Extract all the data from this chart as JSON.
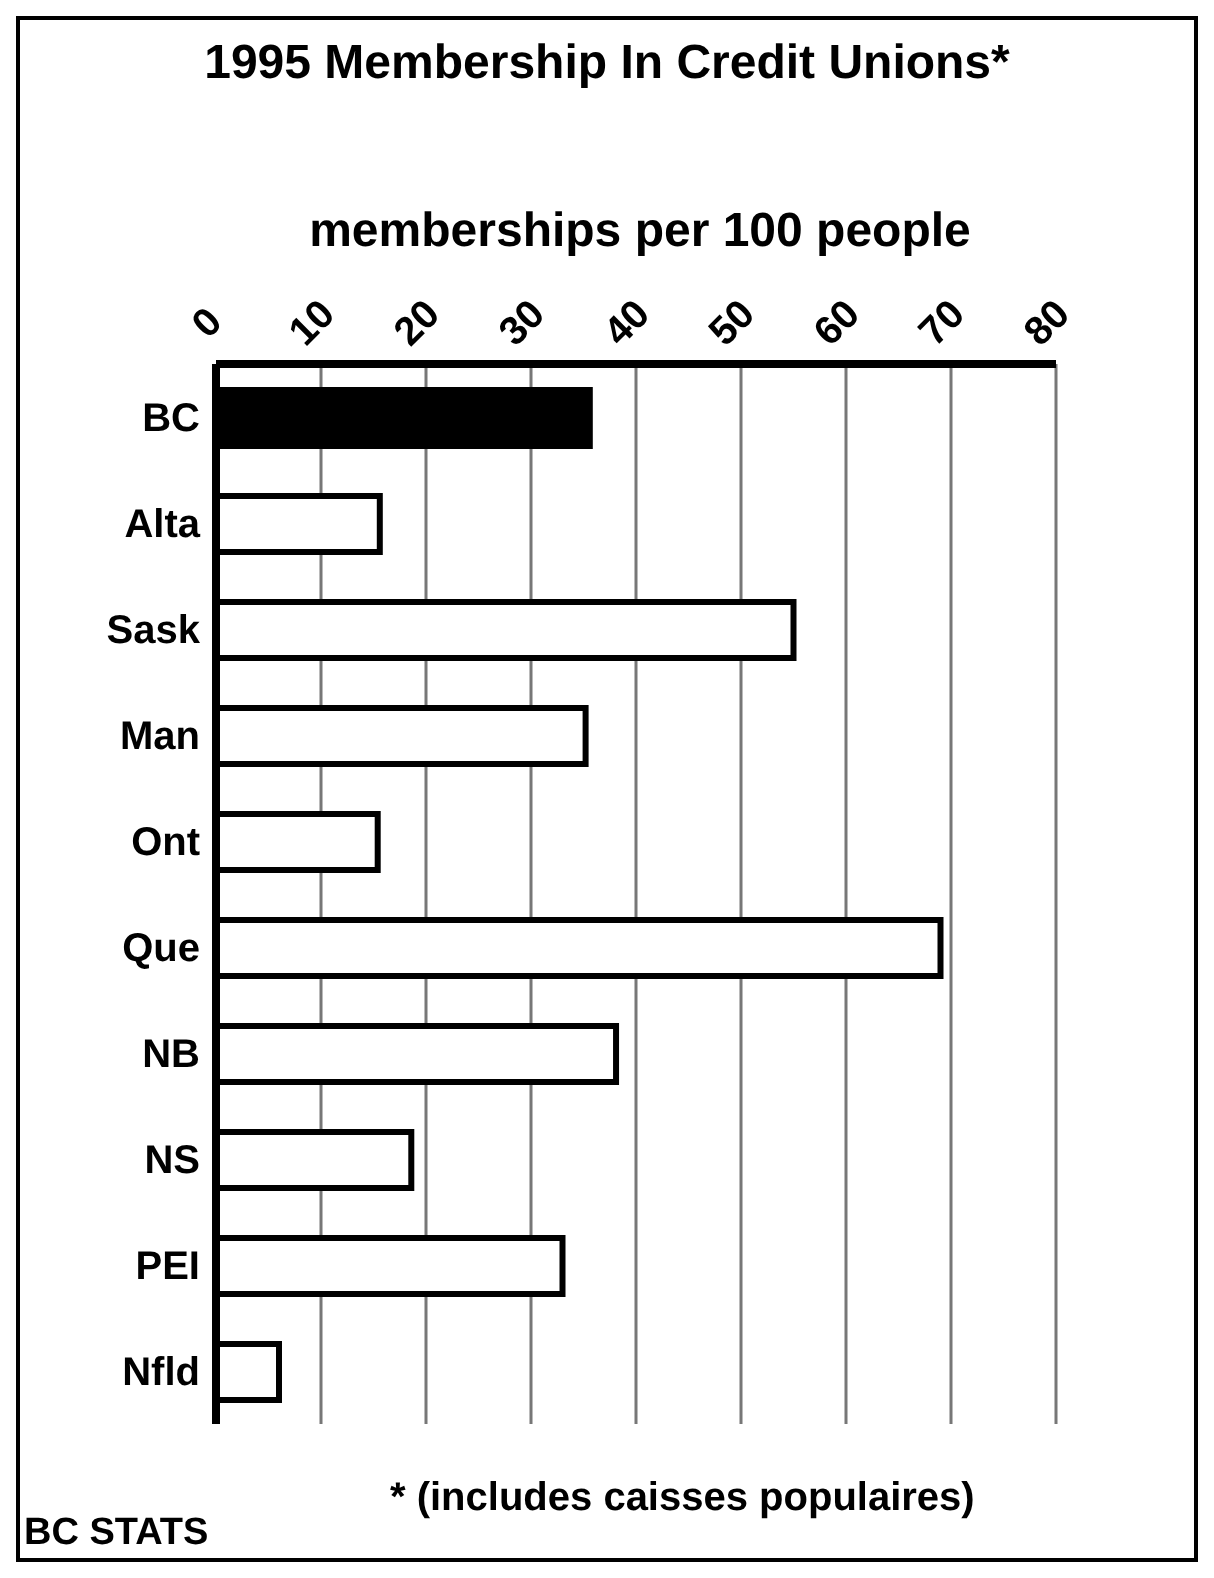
{
  "chart_data": {
    "type": "bar",
    "orientation": "horizontal",
    "title": "1995 Membership In Credit Unions*",
    "xlabel": "memberships per 100 people",
    "categories": [
      "BC",
      "Alta",
      "Sask",
      "Man",
      "Ont",
      "Que",
      "NB",
      "NS",
      "PEI",
      "Nfld"
    ],
    "values": [
      35.6,
      15.6,
      55.0,
      35.2,
      15.4,
      69.0,
      38.1,
      18.6,
      33.0,
      6.0
    ],
    "colors": [
      "#000000",
      "#ffffff",
      "#ffffff",
      "#ffffff",
      "#ffffff",
      "#ffffff",
      "#ffffff",
      "#ffffff",
      "#ffffff",
      "#ffffff"
    ],
    "xlim": [
      0,
      80
    ],
    "xticks": [
      0,
      10,
      20,
      30,
      40,
      50,
      60,
      70,
      80
    ],
    "grid": "x",
    "legend": false,
    "annotations": [
      "* (includes caisses populaires)",
      "BC STATS"
    ]
  }
}
